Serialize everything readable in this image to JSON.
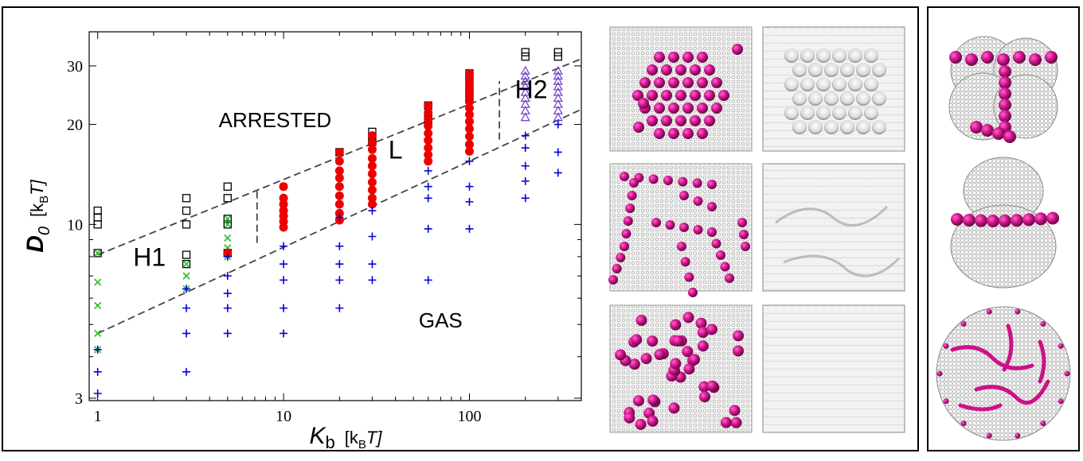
{
  "chart_data": {
    "type": "scatter",
    "x_scale": "log",
    "y_scale": "log",
    "xlim": [
      0.9,
      400
    ],
    "ylim": [
      2.95,
      38
    ],
    "x_ticks": [
      1,
      10,
      100
    ],
    "x_tick_labels": [
      "1",
      "10",
      "100"
    ],
    "y_ticks": [
      3,
      10,
      20,
      30
    ],
    "y_tick_labels": [
      "3",
      "10",
      "20",
      "30"
    ],
    "xlabel_main": "K",
    "xlabel_sub": "b",
    "xlabel_units_pre": "[k",
    "xlabel_units_sub": "B",
    "xlabel_units_post": "T]",
    "ylabel_main": "D",
    "ylabel_sub": "0",
    "ylabel_units_pre": "[k",
    "ylabel_units_sub": "B",
    "ylabel_units_post": "T]",
    "region_labels": [
      {
        "text": "ARRESTED",
        "x": 9,
        "y": 19.6
      },
      {
        "text": "L",
        "x": 40,
        "y": 15.8
      },
      {
        "text": "H1",
        "x": 1.9,
        "y": 7.5
      },
      {
        "text": "H2",
        "x": 215,
        "y": 24
      },
      {
        "text": "GAS",
        "x": 70,
        "y": 4.9
      }
    ],
    "boundaries": [
      {
        "style": "dashed",
        "points": [
          [
            1,
            8.1
          ],
          [
            400,
            31.5
          ]
        ]
      },
      {
        "style": "dashed",
        "points": [
          [
            1,
            4.7
          ],
          [
            400,
            22.2
          ]
        ]
      },
      {
        "style": "dashed",
        "points": [
          [
            7.2,
            8.8
          ],
          [
            7.2,
            12.8
          ]
        ]
      },
      {
        "style": "dashed",
        "points": [
          [
            145,
            18
          ],
          [
            145,
            27
          ]
        ]
      }
    ],
    "series": [
      {
        "name": "arrested",
        "marker": "open-square",
        "color": "#000000",
        "points": [
          [
            1,
            11
          ],
          [
            1,
            10.5
          ],
          [
            1,
            10
          ],
          [
            1,
            8.2
          ],
          [
            3,
            12
          ],
          [
            3,
            11
          ],
          [
            3,
            10
          ],
          [
            3,
            8.1
          ],
          [
            3,
            7.6
          ],
          [
            5,
            13
          ],
          [
            5,
            12
          ],
          [
            5,
            10.4
          ],
          [
            5,
            10
          ],
          [
            5,
            8.2
          ],
          [
            20,
            16.5
          ],
          [
            30,
            19
          ],
          [
            30,
            18.3
          ],
          [
            30,
            17.7
          ],
          [
            60,
            22.8
          ],
          [
            60,
            21
          ],
          [
            60,
            20.3
          ],
          [
            100,
            28.5
          ],
          [
            100,
            27.8
          ],
          [
            100,
            26.5
          ],
          [
            100,
            25
          ],
          [
            100,
            23.8
          ],
          [
            200,
            33
          ],
          [
            200,
            32
          ],
          [
            300,
            33
          ],
          [
            300,
            32
          ]
        ]
      },
      {
        "name": "hexatic-1",
        "marker": "x",
        "color": "#22bb22",
        "points": [
          [
            1,
            8.2
          ],
          [
            1,
            6.7
          ],
          [
            1,
            5.7
          ],
          [
            1,
            4.7
          ],
          [
            1,
            4.2
          ],
          [
            3,
            7.6
          ],
          [
            3,
            7
          ],
          [
            3,
            6.4
          ],
          [
            5,
            10.4
          ],
          [
            5,
            10
          ],
          [
            5,
            9.1
          ],
          [
            5,
            8.5
          ],
          [
            5,
            8
          ],
          [
            10,
            13
          ],
          [
            10,
            11.5
          ],
          [
            10,
            11
          ],
          [
            10,
            10.6
          ]
        ]
      },
      {
        "name": "linear",
        "marker": "filled-circle",
        "color": "#ee0000",
        "points": [
          [
            5,
            8.2
          ],
          [
            10,
            13
          ],
          [
            10,
            12
          ],
          [
            10,
            11.5
          ],
          [
            10,
            11
          ],
          [
            10,
            10.6
          ],
          [
            10,
            10.2
          ],
          [
            10,
            9.8
          ],
          [
            20,
            16.5
          ],
          [
            20,
            15.5
          ],
          [
            20,
            14.5
          ],
          [
            20,
            13.8
          ],
          [
            20,
            13
          ],
          [
            20,
            12.2
          ],
          [
            20,
            11.5
          ],
          [
            20,
            10.8
          ],
          [
            20,
            10.3
          ],
          [
            30,
            18.5
          ],
          [
            30,
            17.6
          ],
          [
            30,
            16.8
          ],
          [
            30,
            15.8
          ],
          [
            30,
            15
          ],
          [
            30,
            14.2
          ],
          [
            30,
            13.4
          ],
          [
            30,
            12.7
          ],
          [
            30,
            12
          ],
          [
            30,
            11.5
          ],
          [
            60,
            22.8
          ],
          [
            60,
            21.7
          ],
          [
            60,
            20.7
          ],
          [
            60,
            19.8
          ],
          [
            60,
            18.8
          ],
          [
            60,
            17.9
          ],
          [
            60,
            17
          ],
          [
            60,
            16.2
          ],
          [
            60,
            15.5
          ],
          [
            100,
            28.5
          ],
          [
            100,
            27.5
          ],
          [
            100,
            26.5
          ],
          [
            100,
            25.5
          ],
          [
            100,
            24.4
          ],
          [
            100,
            23.4
          ],
          [
            100,
            22.4
          ],
          [
            100,
            21.4
          ],
          [
            100,
            20.4
          ],
          [
            100,
            19.4
          ],
          [
            100,
            18.4
          ],
          [
            100,
            17.4
          ],
          [
            100,
            16.6
          ]
        ]
      },
      {
        "name": "hexatic-2",
        "marker": "open-triangle",
        "color": "#7744cc",
        "points": [
          [
            200,
            29
          ],
          [
            200,
            28
          ],
          [
            200,
            27
          ],
          [
            200,
            26
          ],
          [
            200,
            25
          ],
          [
            200,
            24
          ],
          [
            200,
            23
          ],
          [
            200,
            22
          ],
          [
            200,
            21
          ],
          [
            300,
            29
          ],
          [
            300,
            28
          ],
          [
            300,
            27
          ],
          [
            300,
            26
          ],
          [
            300,
            25
          ],
          [
            300,
            24
          ],
          [
            300,
            23
          ],
          [
            300,
            22
          ],
          [
            300,
            21
          ]
        ]
      },
      {
        "name": "gas",
        "marker": "plus",
        "color": "#0000dd",
        "points": [
          [
            1,
            4.2
          ],
          [
            1,
            3.6
          ],
          [
            1,
            3.1
          ],
          [
            3,
            6.4
          ],
          [
            3,
            5.6
          ],
          [
            3,
            4.7
          ],
          [
            3,
            3.6
          ],
          [
            5,
            8
          ],
          [
            5,
            7
          ],
          [
            5,
            6.2
          ],
          [
            5,
            5.6
          ],
          [
            5,
            4.7
          ],
          [
            10,
            8.6
          ],
          [
            10,
            7.6
          ],
          [
            10,
            6.8
          ],
          [
            10,
            5.6
          ],
          [
            10,
            4.7
          ],
          [
            20,
            10.5
          ],
          [
            20,
            8.6
          ],
          [
            20,
            7.6
          ],
          [
            20,
            6.8
          ],
          [
            20,
            5.6
          ],
          [
            30,
            11
          ],
          [
            30,
            9.2
          ],
          [
            30,
            7.6
          ],
          [
            30,
            6.8
          ],
          [
            60,
            14.5
          ],
          [
            60,
            13
          ],
          [
            60,
            12
          ],
          [
            60,
            9.7
          ],
          [
            60,
            6.8
          ],
          [
            100,
            15.5
          ],
          [
            100,
            13
          ],
          [
            100,
            11.7
          ],
          [
            100,
            9.7
          ],
          [
            200,
            18.5
          ],
          [
            200,
            17
          ],
          [
            200,
            15
          ],
          [
            200,
            13.5
          ],
          [
            200,
            12
          ],
          [
            300,
            20
          ],
          [
            300,
            16.5
          ],
          [
            300,
            14.3
          ]
        ]
      }
    ]
  },
  "snapshots": {
    "rows": [
      "hexatic-cluster",
      "linear-chains",
      "gas-dispersed"
    ],
    "colors": {
      "particle": "#cc1188",
      "membrane": "#d8d8d8",
      "membrane_edge": "#8a8a8a"
    }
  }
}
